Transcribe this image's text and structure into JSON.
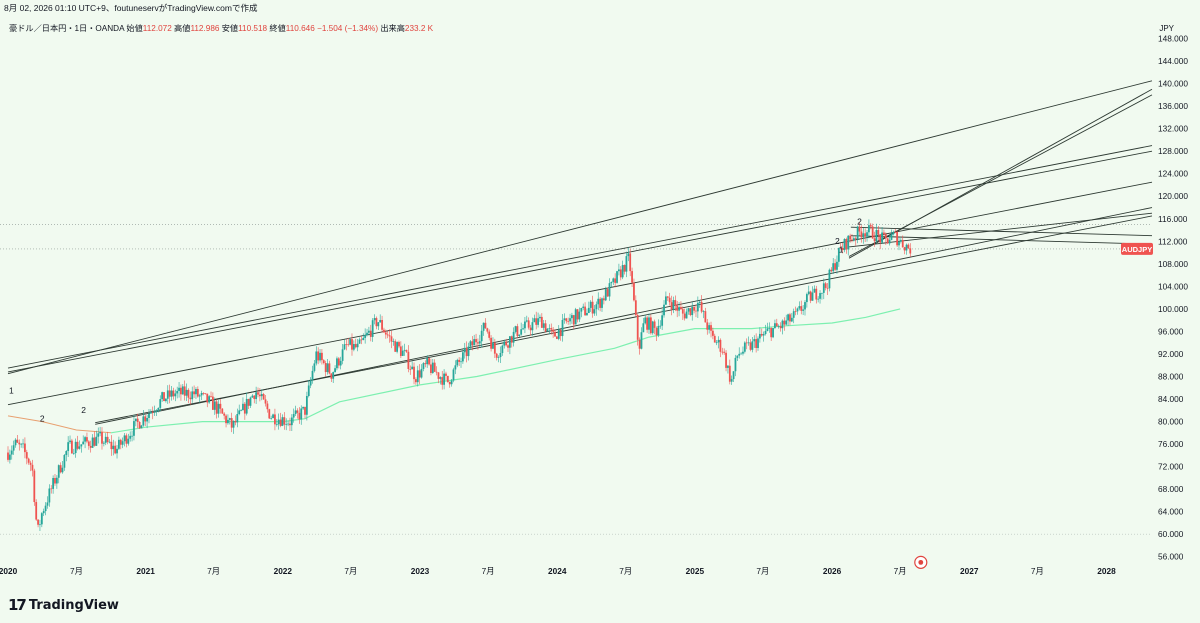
{
  "header": {
    "topline": "8月 02, 2026 01:10 UTC+9、foutuneservがTradingView.comで作成"
  },
  "legend": {
    "symbol": "豪ドル／日本円・1日・OANDA",
    "open_label": "始値",
    "open_value": "112.072",
    "high_label": "高値",
    "high_value": "112.986",
    "low_label": "安値",
    "low_value": "110.518",
    "close_label": "終値",
    "close_value": "110.646",
    "change": "−1.504 (−1.34%)",
    "volume_label": "出来高",
    "volume_value": "233.2 K"
  },
  "currency": "JPY",
  "price_tag": "AUDJPY",
  "brand": {
    "mark": "17",
    "name": "TradingView"
  },
  "colors": {
    "background": "#f1faf0",
    "candle_up": "#26a69a",
    "candle_down": "#ef5350",
    "line": "#2e3a33",
    "ma_green": "#7df0b0",
    "ma_orange": "#e8a070",
    "tag": "#ef5350"
  },
  "chart_data": {
    "type": "candlestick",
    "symbol": "AUDJPY",
    "ylim": [
      54,
      152
    ],
    "y_ticks": [
      "148.000",
      "144.000",
      "140.000",
      "136.000",
      "132.000",
      "128.000",
      "124.000",
      "120.000",
      "116.000",
      "112.000",
      "108.000",
      "104.000",
      "100.000",
      "96.000",
      "92.000",
      "88.000",
      "84.000",
      "80.000",
      "76.000",
      "72.000",
      "68.000",
      "64.000",
      "60.000",
      "56.000"
    ],
    "x_ticks": [
      "2020",
      "7月",
      "2021",
      "7月",
      "2022",
      "7月",
      "2023",
      "7月",
      "2024",
      "7月",
      "2025",
      "7月",
      "2026",
      "7月",
      "2027",
      "7月",
      "2028"
    ],
    "x_range": [
      "2020-01-01",
      "2028-05-01"
    ],
    "price_path": [
      [
        "2020-01-01",
        74.5
      ],
      [
        "2020-01-20",
        76
      ],
      [
        "2020-02-10",
        75
      ],
      [
        "2020-03-05",
        72
      ],
      [
        "2020-03-19",
        60
      ],
      [
        "2020-04-01",
        64
      ],
      [
        "2020-05-01",
        69
      ],
      [
        "2020-06-10",
        75.5
      ],
      [
        "2020-07-15",
        76
      ],
      [
        "2020-09-01",
        77
      ],
      [
        "2020-10-15",
        75
      ],
      [
        "2020-12-01",
        79
      ],
      [
        "2021-02-15",
        84
      ],
      [
        "2021-03-20",
        85
      ],
      [
        "2021-05-10",
        85
      ],
      [
        "2021-07-01",
        83
      ],
      [
        "2021-08-20",
        79
      ],
      [
        "2021-10-20",
        85.5
      ],
      [
        "2021-12-01",
        81
      ],
      [
        "2022-01-20",
        80
      ],
      [
        "2022-03-01",
        82
      ],
      [
        "2022-03-30",
        92
      ],
      [
        "2022-05-10",
        88.5
      ],
      [
        "2022-06-20",
        93.5
      ],
      [
        "2022-07-20",
        93
      ],
      [
        "2022-09-10",
        98
      ],
      [
        "2022-10-20",
        94
      ],
      [
        "2022-11-20",
        92
      ],
      [
        "2022-12-20",
        88
      ],
      [
        "2023-01-20",
        90
      ],
      [
        "2023-03-15",
        87
      ],
      [
        "2023-04-10",
        90
      ],
      [
        "2023-06-25",
        97
      ],
      [
        "2023-07-20",
        92
      ],
      [
        "2023-09-15",
        96
      ],
      [
        "2023-11-20",
        98
      ],
      [
        "2023-12-20",
        95
      ],
      [
        "2024-02-01",
        98
      ],
      [
        "2024-04-20",
        101
      ],
      [
        "2024-05-25",
        104
      ],
      [
        "2024-07-10",
        109
      ],
      [
        "2024-08-05",
        93
      ],
      [
        "2024-08-20",
        98
      ],
      [
        "2024-09-20",
        96
      ],
      [
        "2024-10-20",
        102
      ],
      [
        "2024-12-01",
        99
      ],
      [
        "2025-01-10",
        101
      ],
      [
        "2025-02-15",
        95
      ],
      [
        "2025-03-15",
        93
      ],
      [
        "2025-04-08",
        87
      ],
      [
        "2025-04-25",
        92
      ],
      [
        "2025-06-01",
        93.5
      ],
      [
        "2025-07-15",
        96
      ],
      [
        "2025-08-20",
        97
      ],
      [
        "2025-09-30",
        99
      ],
      [
        "2025-11-01",
        102
      ],
      [
        "2025-12-15",
        104
      ],
      [
        "2026-01-20",
        110
      ],
      [
        "2026-02-10",
        112
      ],
      [
        "2026-03-01",
        113
      ],
      [
        "2026-03-25",
        114
      ],
      [
        "2026-04-20",
        113.5
      ],
      [
        "2026-05-20",
        112
      ],
      [
        "2026-06-15",
        113
      ],
      [
        "2026-07-10",
        111.5
      ],
      [
        "2026-07-31",
        110.6
      ]
    ],
    "moving_average_200": [
      [
        "2020-10-01",
        78
      ],
      [
        "2021-01-01",
        79
      ],
      [
        "2021-06-01",
        80
      ],
      [
        "2022-01-01",
        80
      ],
      [
        "2022-03-01",
        80.5
      ],
      [
        "2022-06-01",
        83.5
      ],
      [
        "2023-01-01",
        86.5
      ],
      [
        "2023-06-01",
        88
      ],
      [
        "2024-01-01",
        91
      ],
      [
        "2024-06-01",
        93
      ],
      [
        "2024-09-01",
        95
      ],
      [
        "2025-01-01",
        96.5
      ],
      [
        "2025-06-01",
        96.5
      ],
      [
        "2025-09-01",
        97
      ],
      [
        "2026-01-01",
        97.5
      ],
      [
        "2026-04-01",
        98.5
      ],
      [
        "2026-07-01",
        100
      ]
    ],
    "moving_average_long": [
      [
        "2020-01-01",
        81
      ],
      [
        "2020-04-01",
        80
      ],
      [
        "2020-07-01",
        78.5
      ],
      [
        "2020-10-01",
        78
      ]
    ],
    "trend_lines": [
      {
        "from": [
          "2020-01-01",
          88.5
        ],
        "to": [
          "2028-05-01",
          140.5
        ]
      },
      {
        "from": [
          "2020-01-01",
          89.5
        ],
        "to": [
          "2028-05-01",
          129
        ]
      },
      {
        "from": [
          "2020-01-01",
          88.8
        ],
        "to": [
          "2028-05-01",
          128
        ]
      },
      {
        "from": [
          "2020-01-01",
          83
        ],
        "to": [
          "2028-05-01",
          122.5
        ]
      },
      {
        "from": [
          "2020-08-20",
          79.5
        ],
        "to": [
          "2028-05-01",
          118
        ]
      },
      {
        "from": [
          "2020-08-20",
          79.8
        ],
        "to": [
          "2028-05-01",
          116.5
        ]
      },
      {
        "from": [
          "2026-02-15",
          109
        ],
        "to": [
          "2028-05-01",
          139
        ]
      },
      {
        "from": [
          "2026-02-15",
          109.3
        ],
        "to": [
          "2028-05-01",
          138
        ]
      },
      {
        "from": [
          "2026-02-15",
          111
        ],
        "to": [
          "2028-05-01",
          117
        ]
      },
      {
        "from": [
          "2026-02-20",
          114.5
        ],
        "to": [
          "2028-05-01",
          113
        ]
      },
      {
        "from": [
          "2026-02-20",
          113
        ],
        "to": [
          "2028-05-01",
          111.5
        ]
      }
    ],
    "wave_labels": [
      {
        "t": "1",
        "x": "2020-01-10",
        "y": 85
      },
      {
        "t": "2",
        "x": "2020-04-01",
        "y": 80
      },
      {
        "t": "2",
        "x": "2020-07-20",
        "y": 81.5
      },
      {
        "t": "2",
        "x": "2026-01-15",
        "y": 111.5
      },
      {
        "t": "1",
        "x": "2026-01-25",
        "y": 110
      },
      {
        "t": "2",
        "x": "2026-03-15",
        "y": 115
      }
    ],
    "last_price": 110.646,
    "marker": {
      "x": "2026-08-25",
      "y": 55
    }
  }
}
